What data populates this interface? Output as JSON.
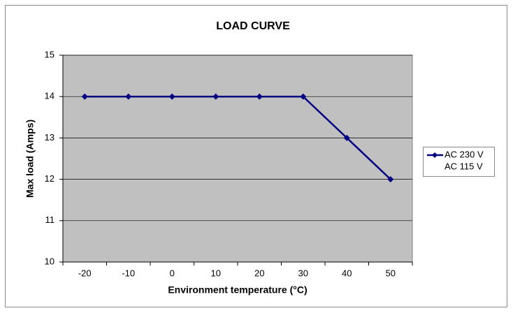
{
  "chart_data": {
    "type": "line",
    "title": "LOAD CURVE",
    "x_label": "Environment temperature (°C)",
    "y_label": "Max load (Amps)",
    "categories": [
      -20,
      -10,
      0,
      10,
      20,
      30,
      40,
      50
    ],
    "series": [
      {
        "name": "AC 230 V",
        "color": "#000080",
        "values": [
          14,
          14,
          14,
          14,
          14,
          14,
          13,
          12
        ]
      },
      {
        "name": "AC 115 V",
        "values": [
          null,
          null,
          null,
          null,
          null,
          null,
          null,
          null
        ]
      }
    ],
    "ylim": [
      10,
      15
    ],
    "yticks": [
      10,
      11,
      12,
      13,
      14,
      15
    ],
    "grid": true,
    "legend": "right"
  }
}
